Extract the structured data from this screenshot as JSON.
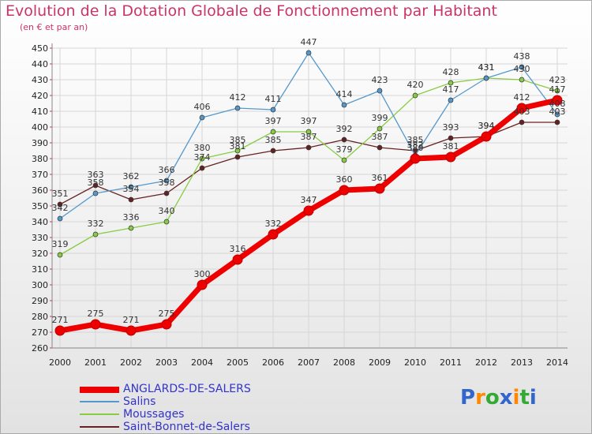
{
  "header": {
    "title": "Evolution de la Dotation Globale de Fonctionnement par Habitant",
    "subtitle": "(en € et par an)"
  },
  "logo": {
    "text": "Proxiti",
    "c1": "#3366cc",
    "c2": "#ff8800",
    "c3": "#33aa33"
  },
  "chart_data": {
    "type": "line",
    "title": "Evolution de la Dotation Globale de Fonctionnement par Habitant",
    "ylabel": "(en € et par an)",
    "xlabel": "",
    "x": [
      2000,
      2001,
      2002,
      2003,
      2004,
      2005,
      2006,
      2007,
      2008,
      2009,
      2010,
      2011,
      2012,
      2013,
      2014
    ],
    "ylim": [
      260,
      450
    ],
    "yticks": [
      260,
      270,
      280,
      290,
      300,
      310,
      320,
      330,
      340,
      350,
      360,
      370,
      380,
      390,
      400,
      410,
      420,
      430,
      440,
      450
    ],
    "grid": true,
    "legend_position": "bottom-left",
    "series": [
      {
        "name": "ANGLARDS-DE-SALERS",
        "color": "#ee0000",
        "values": [
          271,
          275,
          271,
          275,
          300,
          316,
          332,
          347,
          360,
          361,
          380,
          381,
          394,
          412,
          417
        ]
      },
      {
        "name": "Salins",
        "color": "#5599cc",
        "values": [
          342,
          358,
          362,
          366,
          406,
          412,
          411,
          447,
          414,
          423,
          382,
          417,
          431,
          438,
          408
        ]
      },
      {
        "name": "Moussages",
        "color": "#88cc44",
        "values": [
          319,
          332,
          336,
          340,
          380,
          385,
          397,
          397,
          379,
          399,
          420,
          428,
          431,
          430,
          423
        ]
      },
      {
        "name": "Saint-Bonnet-de-Salers",
        "color": "#662222",
        "values": [
          351,
          363,
          354,
          358,
          374,
          381,
          385,
          387,
          392,
          387,
          385,
          393,
          394,
          403,
          403
        ]
      }
    ]
  }
}
